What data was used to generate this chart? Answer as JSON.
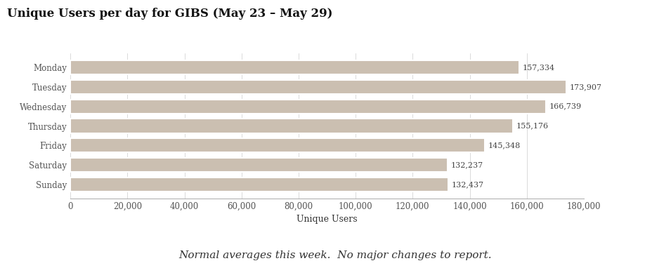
{
  "title": "Unique Users per day for GIBS (May 23 – May 29)",
  "categories": [
    "Monday",
    "Tuesday",
    "Wednesday",
    "Thursday",
    "Friday",
    "Saturday",
    "Sunday"
  ],
  "values": [
    157334,
    173907,
    166739,
    155176,
    145348,
    132237,
    132437
  ],
  "labels": [
    "157,334",
    "173,907",
    "166,739",
    "155,176",
    "145,348",
    "132,237",
    "132,437"
  ],
  "bar_color": "#cbbfb1",
  "xlabel": "Unique Users",
  "xlim": [
    0,
    180000
  ],
  "xticks": [
    0,
    20000,
    40000,
    60000,
    80000,
    100000,
    120000,
    140000,
    160000,
    180000
  ],
  "xtick_labels": [
    "0",
    "20,000",
    "40,000",
    "60,000",
    "80,000",
    "100,000",
    "120,000",
    "140,000",
    "160,000",
    "180,000"
  ],
  "footnote": "Normal averages this week.  No major changes to report.",
  "bg_color": "#ffffff",
  "title_fontsize": 12,
  "label_fontsize": 8,
  "tick_fontsize": 8.5,
  "xlabel_fontsize": 9,
  "footnote_fontsize": 11
}
